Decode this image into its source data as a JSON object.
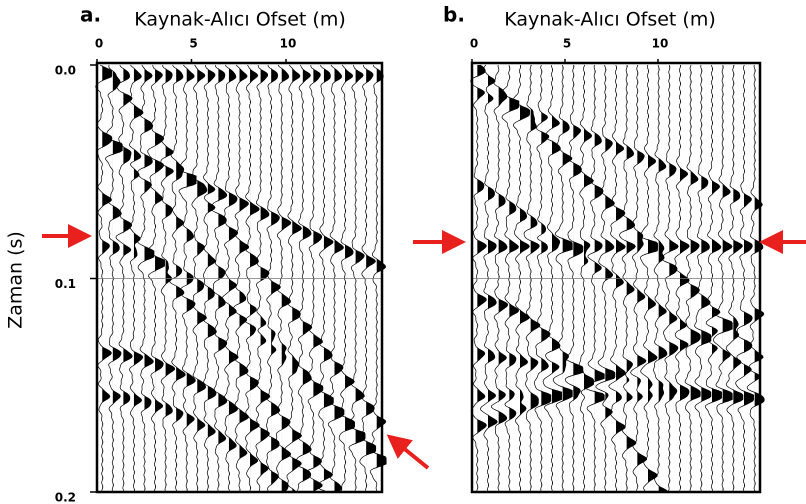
{
  "y_axis": {
    "label": "Zaman (s)",
    "ticks": [
      {
        "value": 0,
        "label": "0.0"
      },
      {
        "value": 0.1,
        "label": "0.1"
      },
      {
        "value": 0.2,
        "label": "0.2"
      }
    ]
  },
  "panels": [
    {
      "label": "a.",
      "x_axis_label": "Kaynak-Alıcı Ofset (m)",
      "xticks": [
        0,
        5,
        10
      ]
    },
    {
      "label": "b.",
      "x_axis_label": "Kaynak-Alıcı Ofset (m)",
      "xticks": [
        0,
        5,
        10
      ]
    }
  ]
}
